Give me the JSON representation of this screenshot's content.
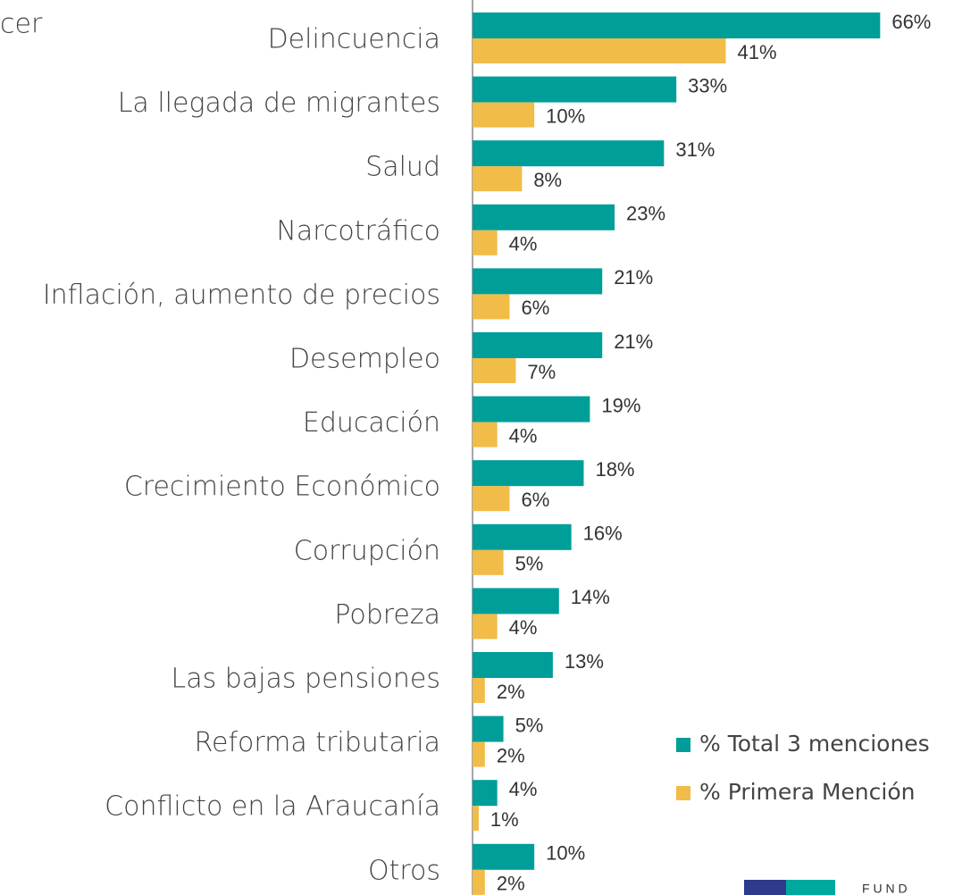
{
  "chart_data": {
    "type": "hbar",
    "title": "cer",
    "logo_text": "F U N D",
    "categories": [
      "Delincuencia",
      "La llegada de migrantes",
      "Salud",
      "Narcotráfico",
      "Inflación, aumento de precios",
      "Desempleo",
      "Educación",
      "Crecimiento Económico",
      "Corrupción",
      "Pobreza",
      "Las bajas pensiones",
      "Reforma tributaria",
      "Conflicto en la Araucanía",
      "Otros"
    ],
    "series": [
      {
        "name": "% Total 3 menciones",
        "color": "#009e99",
        "values": [
          66,
          33,
          31,
          23,
          21,
          21,
          19,
          18,
          16,
          14,
          13,
          5,
          4,
          10
        ],
        "value_labels": [
          "66%",
          "33%",
          "31%",
          "23%",
          "21%",
          "21%",
          "19%",
          "18%",
          "16%",
          "14%",
          "13%",
          "5%",
          "4%",
          "10%"
        ]
      },
      {
        "name": "% Primera Mención",
        "color": "#f1bc48",
        "values": [
          41,
          10,
          8,
          4,
          6,
          7,
          4,
          6,
          5,
          4,
          2,
          2,
          1,
          2
        ],
        "value_labels": [
          "41%",
          "10%",
          "8%",
          "4%",
          "6%",
          "7%",
          "4%",
          "6%",
          "5%",
          "4%",
          "2%",
          "2%",
          "1%",
          "2%"
        ]
      }
    ],
    "xlim": [
      0,
      70
    ],
    "legend": "lower right"
  }
}
